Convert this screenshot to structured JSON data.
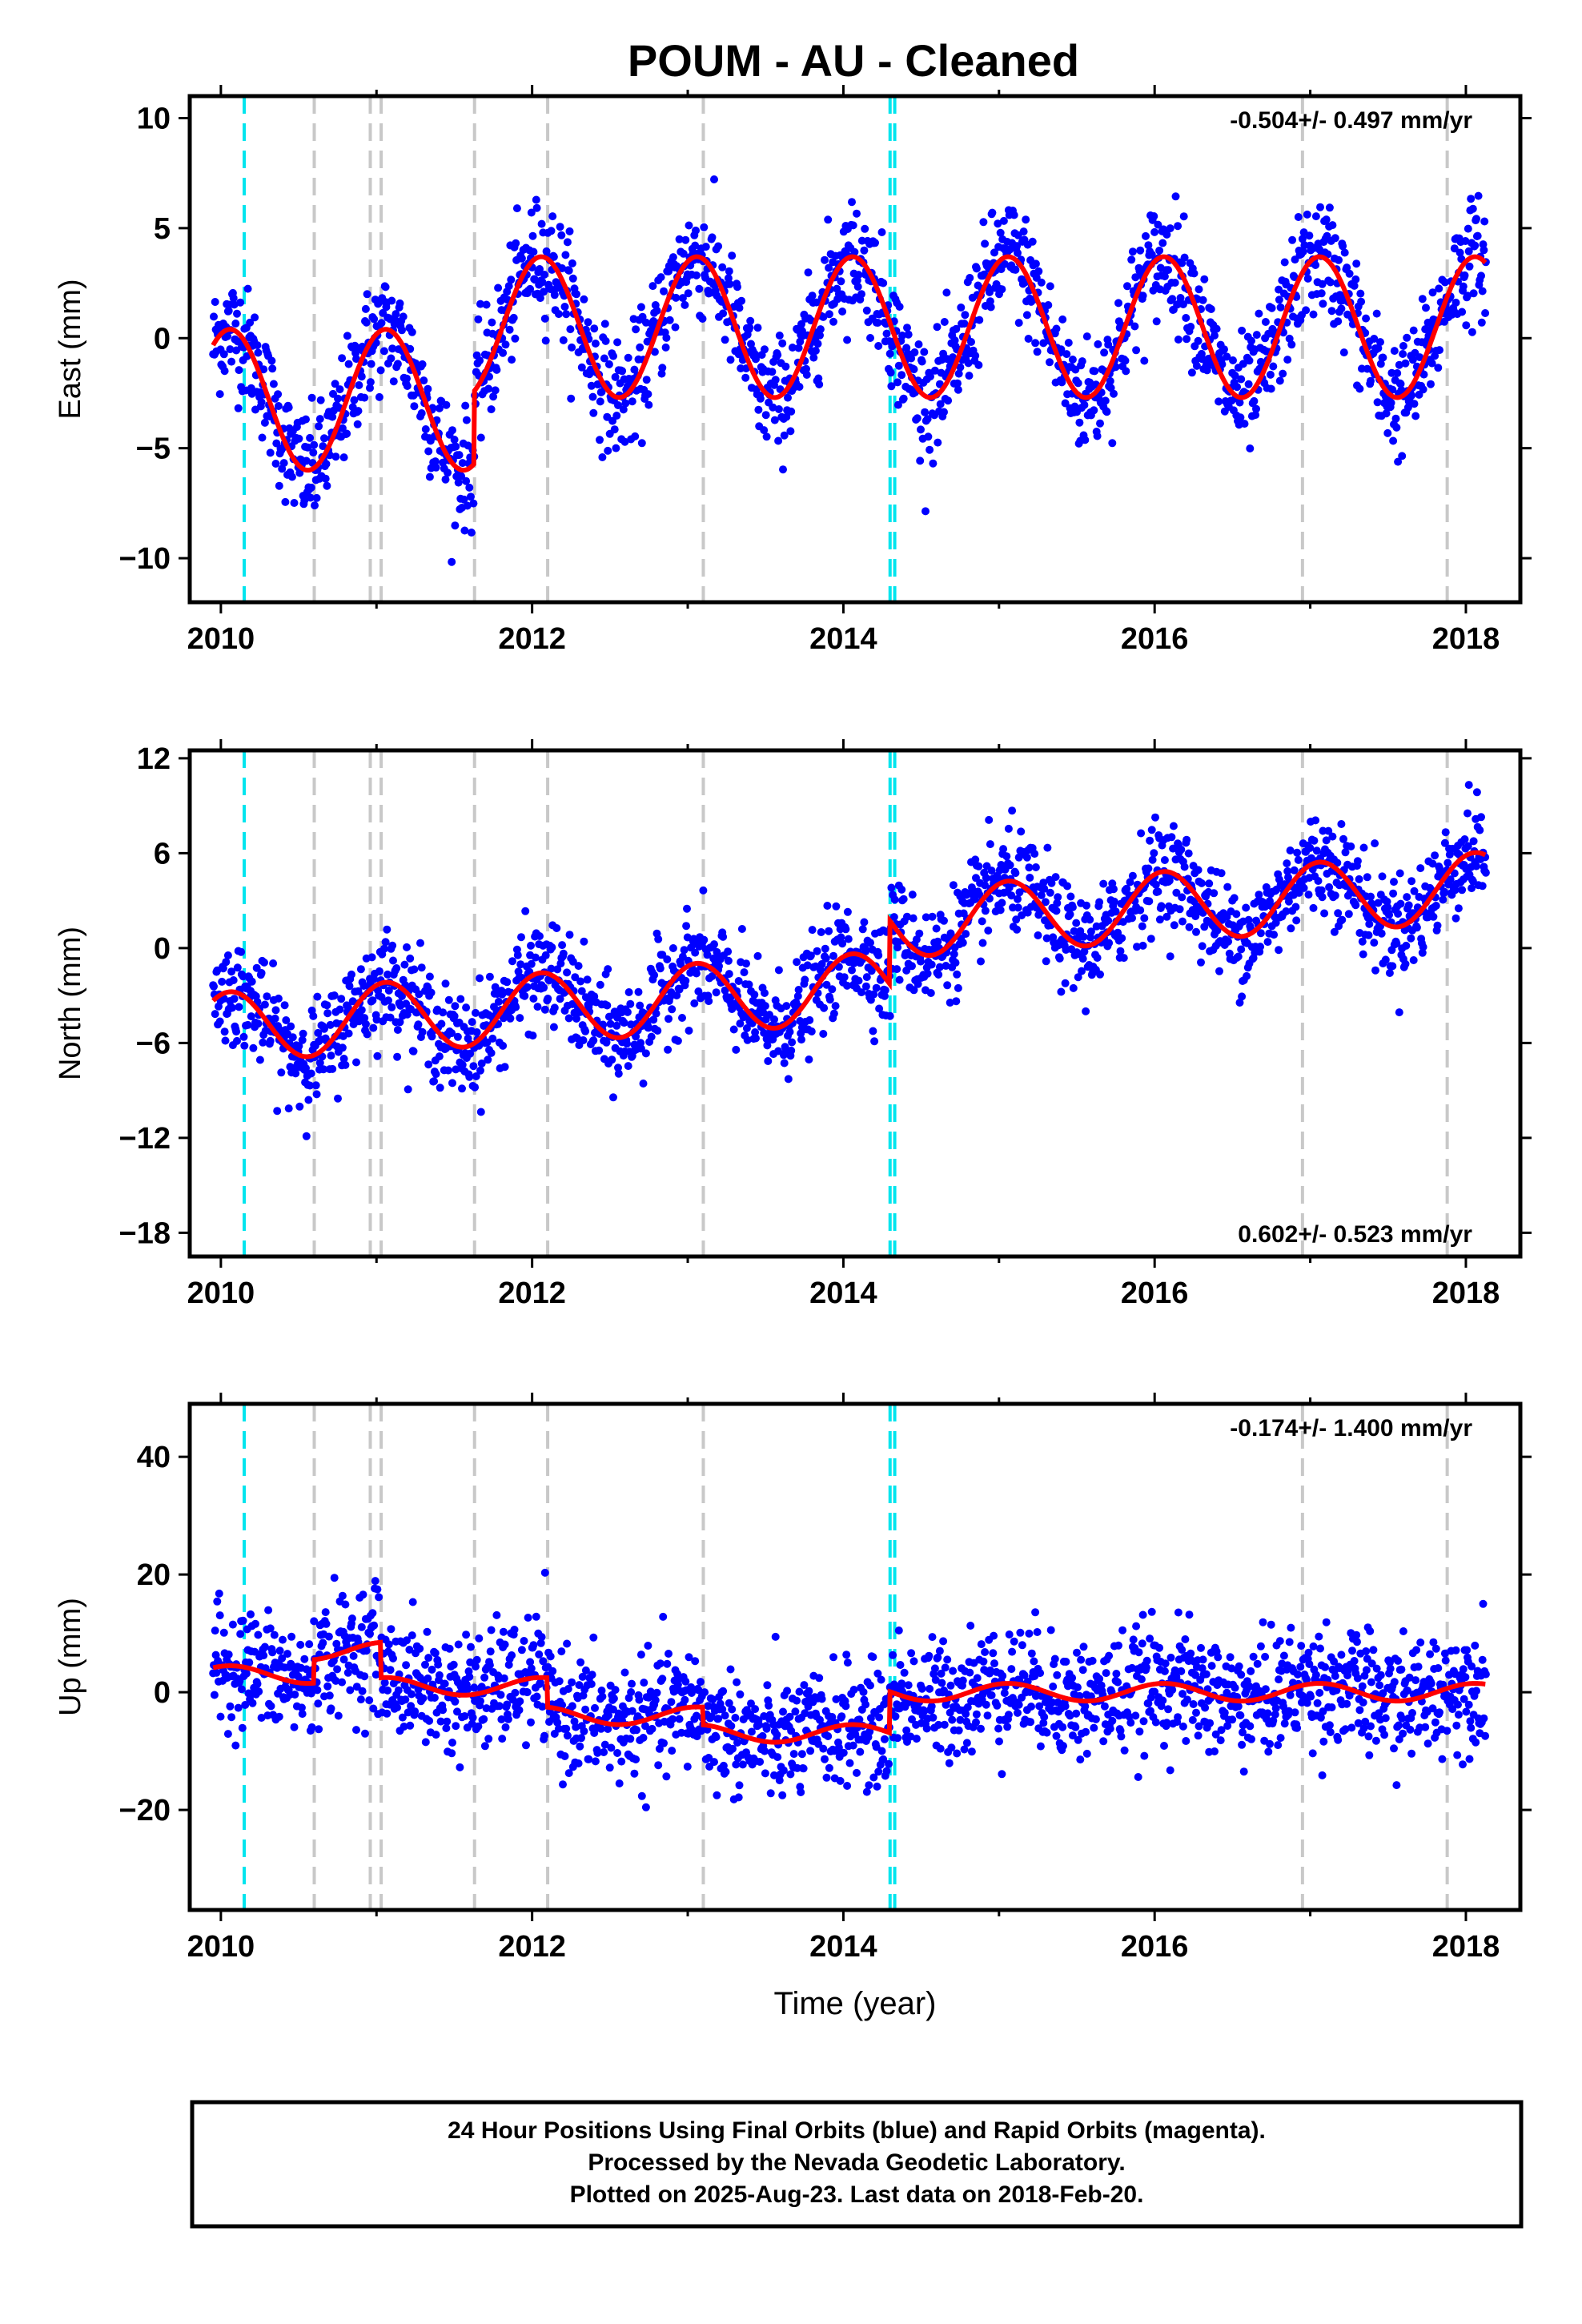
{
  "title": "POUM  - AU - Cleaned",
  "footer": {
    "line1": "24 Hour Positions Using Final Orbits (blue) and Rapid Orbits (magenta).",
    "line2": "Processed by the Nevada Geodetic Laboratory.",
    "line3": "Plotted on 2025-Aug-23. Last data on 2018-Feb-20."
  },
  "colors": {
    "points": "#0000ff",
    "model": "#ff0000",
    "equipment_change": "#c8c8c8",
    "antenna_change": "#00e5ee"
  },
  "chart_data": [
    {
      "type": "scatter",
      "ylabel": "East (mm)",
      "xlabel": "",
      "rate_text": "-0.504+/- 0.497 mm/yr",
      "xlim": [
        2009.8,
        2018.35
      ],
      "ylim": [
        -12,
        11
      ],
      "xticks": [
        2010,
        2012,
        2014,
        2016,
        2018
      ],
      "yticks": [
        -10,
        -5,
        0,
        5,
        10
      ],
      "legend": "none",
      "grid": false,
      "series": [
        {
          "kind": "points",
          "x_start": 2009.95,
          "x_end": 2018.13,
          "offset": -2.8,
          "amplitude": 3.2,
          "noise": 1.3,
          "steps": [
            [
              2011.63,
              3.3
            ]
          ]
        },
        {
          "kind": "model",
          "offset": -2.8,
          "amplitude": 3.2,
          "steps": [
            [
              2011.63,
              3.3
            ]
          ]
        }
      ],
      "vlines_gray": [
        2010.6,
        2010.96,
        2011.03,
        2011.63,
        2012.1,
        2013.1,
        2016.95,
        2017.88
      ],
      "vlines_cyan": [
        2010.15,
        2014.3,
        2014.33
      ]
    },
    {
      "type": "scatter",
      "ylabel": "North (mm)",
      "xlabel": "",
      "rate_text": "0.602+/- 0.523 mm/yr",
      "xlim": [
        2009.8,
        2018.35
      ],
      "ylim": [
        -19.5,
        12.5
      ],
      "xticks": [
        2010,
        2012,
        2014,
        2016,
        2018
      ],
      "yticks": [
        -18,
        -12,
        -6,
        0,
        6,
        12
      ],
      "legend": "none",
      "grid": false,
      "series": [
        {
          "kind": "points",
          "x_start": 2009.95,
          "x_end": 2018.13,
          "offset": -5.0,
          "trend": 0.6,
          "amplitude": 2.2,
          "noise": 1.6,
          "steps": [
            [
              2014.3,
              4.0
            ]
          ]
        },
        {
          "kind": "model",
          "offset": -5.0,
          "trend": 0.6,
          "amplitude": 2.2,
          "steps": [
            [
              2014.3,
              4.0
            ]
          ]
        }
      ],
      "vlines_gray": [
        2010.6,
        2010.96,
        2011.03,
        2011.63,
        2012.1,
        2013.1,
        2016.95,
        2017.88
      ],
      "vlines_cyan": [
        2010.15,
        2014.3,
        2014.33
      ]
    },
    {
      "type": "scatter",
      "ylabel": "Up (mm)",
      "xlabel": "Time (year)",
      "rate_text": "-0.174+/- 1.400 mm/yr",
      "xlim": [
        2009.8,
        2018.35
      ],
      "ylim": [
        -37,
        49
      ],
      "xticks": [
        2010,
        2012,
        2014,
        2016,
        2018
      ],
      "yticks": [
        -20,
        0,
        20,
        40
      ],
      "legend": "none",
      "grid": false,
      "series": [
        {
          "kind": "points",
          "x_start": 2009.95,
          "x_end": 2018.13,
          "offset": 3.0,
          "amplitude": 1.5,
          "noise": 5.0,
          "steps": [
            [
              2010.6,
              4.0
            ],
            [
              2011.03,
              -6.0
            ],
            [
              2012.1,
              -5.0
            ],
            [
              2013.1,
              -3.0
            ],
            [
              2014.3,
              7.0
            ]
          ]
        },
        {
          "kind": "model",
          "offset": 3.0,
          "amplitude": 1.5,
          "steps": [
            [
              2010.6,
              4.0
            ],
            [
              2011.03,
              -6.0
            ],
            [
              2012.1,
              -5.0
            ],
            [
              2013.1,
              -3.0
            ],
            [
              2014.3,
              7.0
            ]
          ]
        }
      ],
      "vlines_gray": [
        2010.6,
        2010.96,
        2011.03,
        2011.63,
        2012.1,
        2013.1,
        2016.95,
        2017.88
      ],
      "vlines_cyan": [
        2010.15,
        2014.3,
        2014.33
      ]
    }
  ]
}
